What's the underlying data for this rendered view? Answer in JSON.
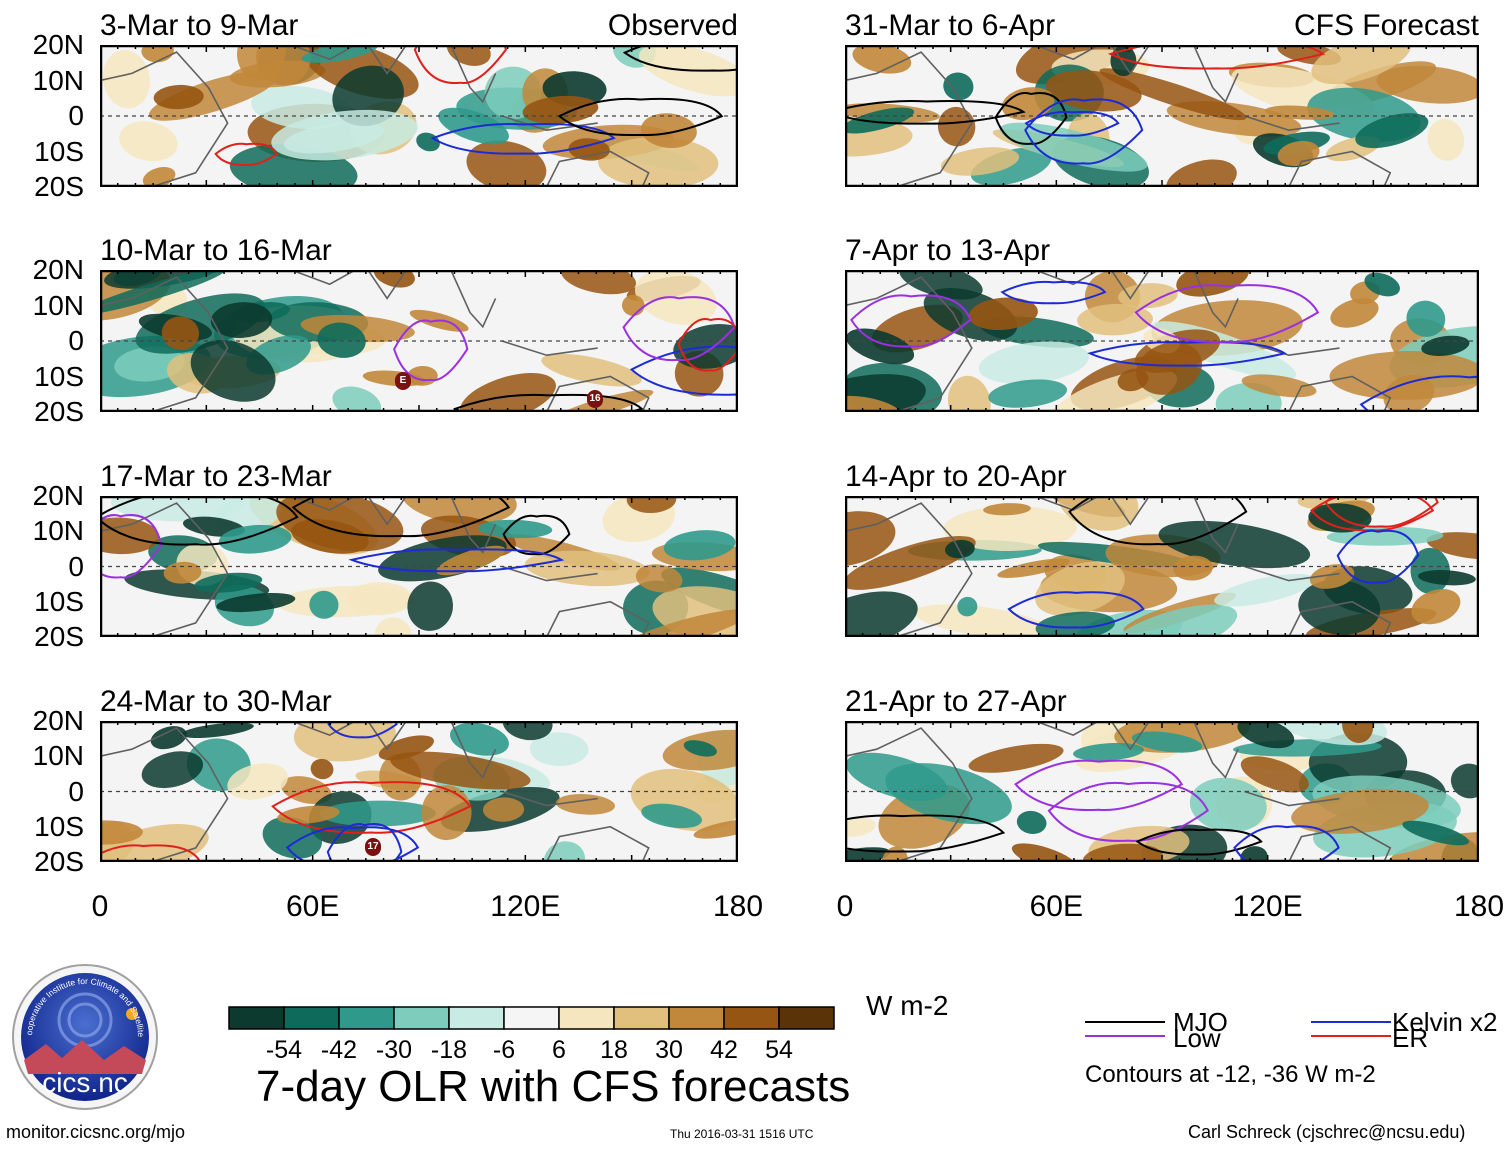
{
  "header": {
    "observed_label": "Observed",
    "forecast_label": "CFS Forecast"
  },
  "lat_labels": [
    "20N",
    "10N",
    "0",
    "10S",
    "20S"
  ],
  "lon_labels": [
    "0",
    "60E",
    "120E",
    "180"
  ],
  "panels_left": [
    {
      "title": "3-Mar to 9-Mar"
    },
    {
      "title": "10-Mar to 16-Mar",
      "storms": [
        {
          "label": "E"
        },
        {
          "label": "16"
        }
      ]
    },
    {
      "title": "17-Mar to 23-Mar"
    },
    {
      "title": "24-Mar to 30-Mar",
      "storms": [
        {
          "label": "17"
        }
      ]
    }
  ],
  "panels_right": [
    {
      "title": "31-Mar to 6-Apr"
    },
    {
      "title": "7-Apr to 13-Apr"
    },
    {
      "title": "14-Apr to 20-Apr"
    },
    {
      "title": "21-Apr to 27-Apr"
    }
  ],
  "colorbar": {
    "colors": [
      "#0c3a2f",
      "#0e6b5b",
      "#2f9a8c",
      "#7dccbc",
      "#c8ebe3",
      "#f5f5f5",
      "#f5e6c0",
      "#e0c07c",
      "#c1873a",
      "#965512",
      "#5a3408"
    ],
    "ticks": [
      "-54",
      "-42",
      "-30",
      "-18",
      "-6",
      "6",
      "18",
      "30",
      "42",
      "54"
    ],
    "units": "W m-2"
  },
  "legend": {
    "items": [
      {
        "label": "MJO",
        "color": "#000000"
      },
      {
        "label": "Kelvin x2",
        "color": "#1d2bd6"
      },
      {
        "label": "Low",
        "color": "#9b30e0"
      },
      {
        "label": "ER",
        "color": "#e0201b"
      }
    ],
    "note": "Contours at -12, -36 W m-2"
  },
  "title": "7-day OLR with CFS forecasts",
  "logo_text": "cics.nc",
  "logo_ring_text": "Cooperative Institute for Climate and Satellites",
  "footer": {
    "url": "monitor.cicsnc.org/mjo",
    "timestamp": "Thu 2016-03-31 1516 UTC",
    "credit": "Carl Schreck (cjschrec@ncsu.edu)"
  }
}
